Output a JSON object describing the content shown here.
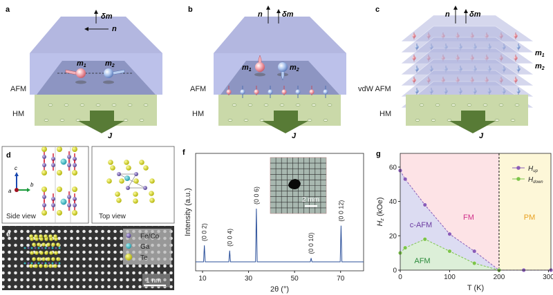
{
  "panels": {
    "a": {
      "label": "a",
      "afm": "AFM",
      "hm": "HM",
      "j": "J",
      "dm": "δm",
      "n": "n",
      "m1": "m",
      "m1_sub": "1",
      "m2": "m",
      "m2_sub": "2"
    },
    "b": {
      "label": "b",
      "afm": "AFM",
      "hm": "HM",
      "j": "J",
      "dm": "δm",
      "n": "n",
      "m1": "m",
      "m1_sub": "1",
      "m2": "m",
      "m2_sub": "2"
    },
    "c": {
      "label": "c",
      "afm": "vdW AFM",
      "hm": "HM",
      "j": "J",
      "dm": "δm",
      "n": "n",
      "m1": "m",
      "m1_sub": "1",
      "m2": "m",
      "m2_sub": "2"
    },
    "d": {
      "label": "d",
      "side_view": "Side view",
      "top_view": "Top view",
      "axis_a": "a",
      "axis_b": "b",
      "axis_c": "c"
    },
    "e": {
      "label": "e",
      "legend": [
        "Fe/Co",
        "Ga",
        "Te"
      ],
      "scale_bar": "1 nm"
    },
    "f": {
      "label": "f",
      "inset_scale_bar": "2 mm"
    },
    "g": {
      "label": "g"
    }
  },
  "colors": {
    "afm_top": "#b4b8e2",
    "afm_front": "#bcc1ea",
    "afm_plane": "#8d95c2",
    "hm": "#cad9a9",
    "current_arrow": "#587b36",
    "spin_up": "#f0a0a8",
    "spin_down": "#a8c0e8",
    "fe_co": "#6a5aa8",
    "ga": "#2cb8c0",
    "te": "#e0e030",
    "xrd_line": "#2a4f9a",
    "fm_region": "#fde3e6",
    "pm_region": "#fdf7d8",
    "cafm_region": "#dcdcf2",
    "afm_region": "#dcefd8",
    "h_up": "#8a5cb8",
    "h_down": "#7cc44a",
    "fm_text": "#d0308a",
    "pm_text": "#e8a020",
    "cafm_text": "#6a3aa0",
    "afm_text": "#2a8a3a"
  },
  "chart_data": [
    {
      "type": "line",
      "panel": "f",
      "xlabel": "2θ (°)",
      "ylabel": "Intensity (a.u.)",
      "xlim": [
        7,
        80
      ],
      "xticks": [
        10,
        30,
        50,
        70
      ],
      "ylim": [
        0,
        1.25
      ],
      "yticks": [],
      "grid": false,
      "peaks": [
        {
          "x": 10.8,
          "y": 0.31,
          "label": "(0 0 2)"
        },
        {
          "x": 21.8,
          "y": 0.21,
          "label": "(0 0 4)"
        },
        {
          "x": 33.4,
          "y": 1.0,
          "label": "(0 0 6)"
        },
        {
          "x": 57.2,
          "y": 0.07,
          "label": "(0 0 10)"
        },
        {
          "x": 70.2,
          "y": 0.68,
          "label": "(0 0 12)"
        }
      ]
    },
    {
      "type": "scatter",
      "panel": "g",
      "xlabel": "T (K)",
      "ylabel": "H",
      "ylabel_sub": "z",
      "ylabel_unit": " (kOe)",
      "xlim": [
        0,
        305
      ],
      "ylim": [
        0,
        68
      ],
      "xticks": [
        0,
        100,
        200,
        300
      ],
      "yticks": [
        0,
        20,
        40,
        60
      ],
      "grid": false,
      "legend_position": "top-right",
      "transition_T": 200,
      "regions": [
        "FM",
        "PM",
        "c-AFM",
        "AFM"
      ],
      "series": [
        {
          "name": "H",
          "name_sub": "up",
          "x": [
            0,
            10,
            50,
            100,
            150,
            200,
            250,
            305
          ],
          "y": [
            58,
            53,
            38,
            21,
            11,
            0,
            0,
            0
          ]
        },
        {
          "name": "H",
          "name_sub": "down",
          "x": [
            0,
            10,
            50,
            100,
            150,
            200
          ],
          "y": [
            10,
            13,
            18,
            11,
            4,
            0
          ]
        }
      ]
    }
  ]
}
